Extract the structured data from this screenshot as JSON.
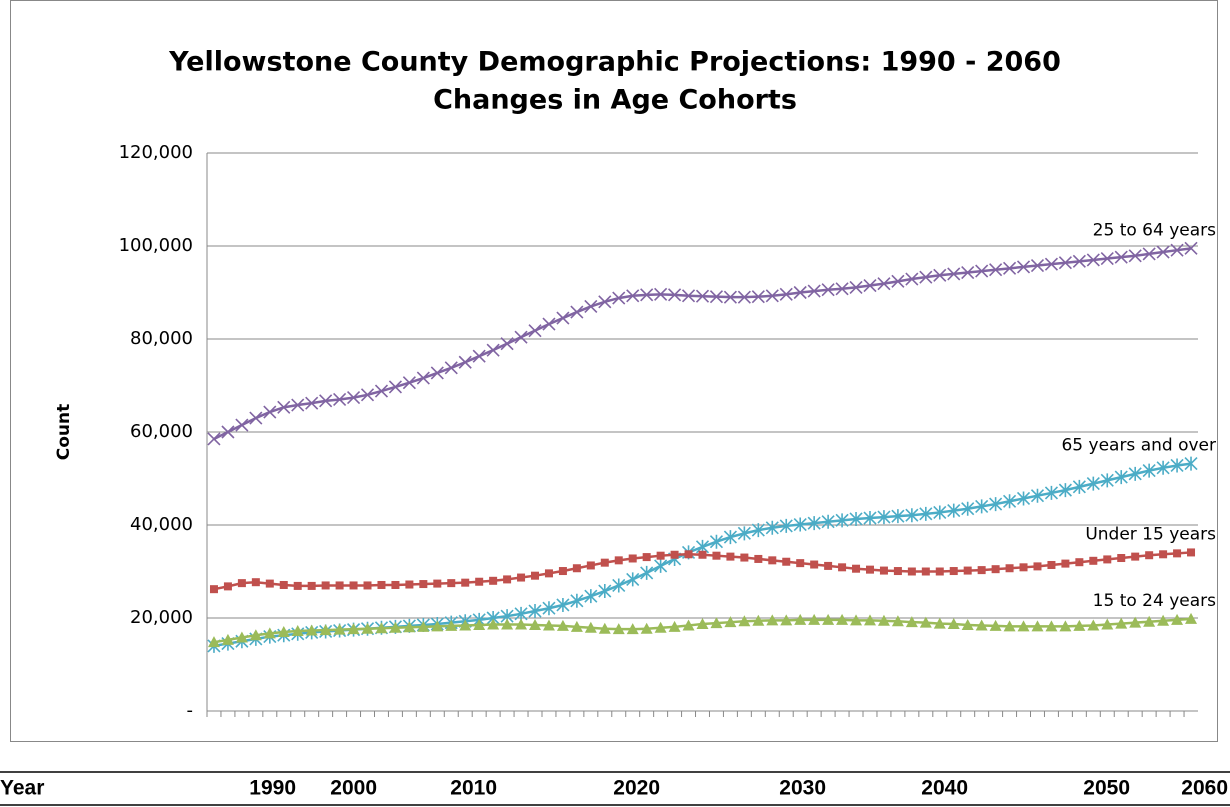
{
  "chart_data": {
    "type": "line",
    "title": [
      "Yellowstone County Demographic Projections:  1990 - 2060",
      "Changes in Age Cohorts"
    ],
    "y_label": "Count",
    "categories": [
      null,
      null,
      null,
      null,
      null,
      null,
      null,
      null,
      null,
      null,
      null,
      null,
      null,
      null,
      null,
      null,
      null,
      null,
      null,
      null,
      null,
      null,
      null,
      null,
      null,
      null,
      null,
      null,
      null,
      null,
      null,
      null,
      null,
      null,
      null,
      null,
      null,
      null,
      null,
      null,
      null,
      null,
      null,
      null,
      null,
      null,
      null,
      null,
      null,
      null,
      null,
      null,
      null,
      null,
      null,
      null,
      null,
      null,
      null,
      null,
      null,
      null,
      null,
      null,
      null,
      null,
      null,
      null,
      null,
      null,
      null
    ],
    "ylim": [
      0,
      120000
    ],
    "yticks": [
      {
        "value": 0,
        "label": "-"
      },
      {
        "value": 20000,
        "label": "20,000"
      },
      {
        "value": 40000,
        "label": "40,000"
      },
      {
        "value": 60000,
        "label": "60,000"
      },
      {
        "value": 80000,
        "label": "80,000"
      },
      {
        "value": 100000,
        "label": "100,000"
      },
      {
        "value": 120000,
        "label": "120,000"
      }
    ],
    "grid": true,
    "series": [
      {
        "name": "25 to 64 years",
        "color": "#8064a2",
        "marker": "x",
        "values": [
          58500,
          60000,
          61500,
          63000,
          64300,
          65300,
          65800,
          66200,
          66700,
          67000,
          67400,
          68000,
          68800,
          69700,
          70600,
          71600,
          72700,
          73800,
          75000,
          76300,
          77600,
          79000,
          80400,
          81800,
          83200,
          84500,
          85800,
          87000,
          88000,
          88800,
          89300,
          89500,
          89600,
          89500,
          89300,
          89200,
          89100,
          89000,
          89000,
          89100,
          89300,
          89600,
          90000,
          90300,
          90600,
          90800,
          91100,
          91500,
          91900,
          92400,
          92900,
          93300,
          93700,
          94000,
          94300,
          94600,
          94900,
          95200,
          95500,
          95800,
          96100,
          96400,
          96700,
          97000,
          97300,
          97600,
          97900,
          98300,
          98700,
          99100,
          99500
        ]
      },
      {
        "name": "65 years and over",
        "color": "#4bacc6",
        "marker": "asterisk",
        "values": [
          14000,
          14500,
          15000,
          15500,
          16000,
          16300,
          16600,
          16900,
          17100,
          17300,
          17500,
          17700,
          17900,
          18100,
          18300,
          18500,
          18700,
          19000,
          19300,
          19600,
          20000,
          20400,
          20900,
          21500,
          22100,
          22800,
          23700,
          24700,
          25800,
          27000,
          28300,
          29700,
          31200,
          32700,
          34100,
          35300,
          36400,
          37400,
          38200,
          38900,
          39400,
          39800,
          40100,
          40400,
          40700,
          41000,
          41300,
          41500,
          41700,
          41900,
          42100,
          42400,
          42700,
          43100,
          43500,
          44000,
          44500,
          45100,
          45700,
          46300,
          46900,
          47500,
          48200,
          48900,
          49600,
          50300,
          51000,
          51700,
          52300,
          52800,
          53200
        ]
      },
      {
        "name": "Under 15 years",
        "color": "#c0504d",
        "marker": "square",
        "values": [
          26200,
          26800,
          27500,
          27700,
          27400,
          27100,
          26900,
          26900,
          27000,
          27000,
          27000,
          27000,
          27100,
          27100,
          27200,
          27300,
          27400,
          27500,
          27600,
          27800,
          28000,
          28300,
          28700,
          29100,
          29600,
          30100,
          30700,
          31300,
          31900,
          32400,
          32800,
          33100,
          33400,
          33600,
          33700,
          33600,
          33400,
          33200,
          33000,
          32700,
          32400,
          32100,
          31800,
          31500,
          31200,
          30900,
          30600,
          30400,
          30200,
          30100,
          30000,
          30000,
          30000,
          30100,
          30200,
          30300,
          30500,
          30700,
          30900,
          31100,
          31400,
          31700,
          32000,
          32300,
          32600,
          32900,
          33200,
          33500,
          33700,
          33900,
          34100
        ]
      },
      {
        "name": "15 to 24 years",
        "color": "#9bbb59",
        "marker": "triangle",
        "values": [
          14800,
          15300,
          15800,
          16300,
          16700,
          17000,
          17200,
          17300,
          17400,
          17500,
          17600,
          17700,
          17800,
          17900,
          18000,
          18100,
          18200,
          18300,
          18400,
          18500,
          18600,
          18600,
          18600,
          18500,
          18400,
          18300,
          18100,
          17900,
          17700,
          17600,
          17600,
          17700,
          17900,
          18100,
          18400,
          18700,
          18900,
          19100,
          19300,
          19400,
          19500,
          19500,
          19600,
          19600,
          19600,
          19600,
          19500,
          19500,
          19400,
          19300,
          19100,
          19000,
          18800,
          18700,
          18500,
          18400,
          18300,
          18200,
          18200,
          18200,
          18200,
          18200,
          18300,
          18400,
          18600,
          18800,
          19000,
          19200,
          19400,
          19600,
          19800
        ]
      }
    ]
  },
  "table": {
    "header": [
      "Year",
      "1990",
      "2000",
      "2010",
      "2020",
      "2030",
      "2040",
      "2050",
      "2060"
    ]
  }
}
